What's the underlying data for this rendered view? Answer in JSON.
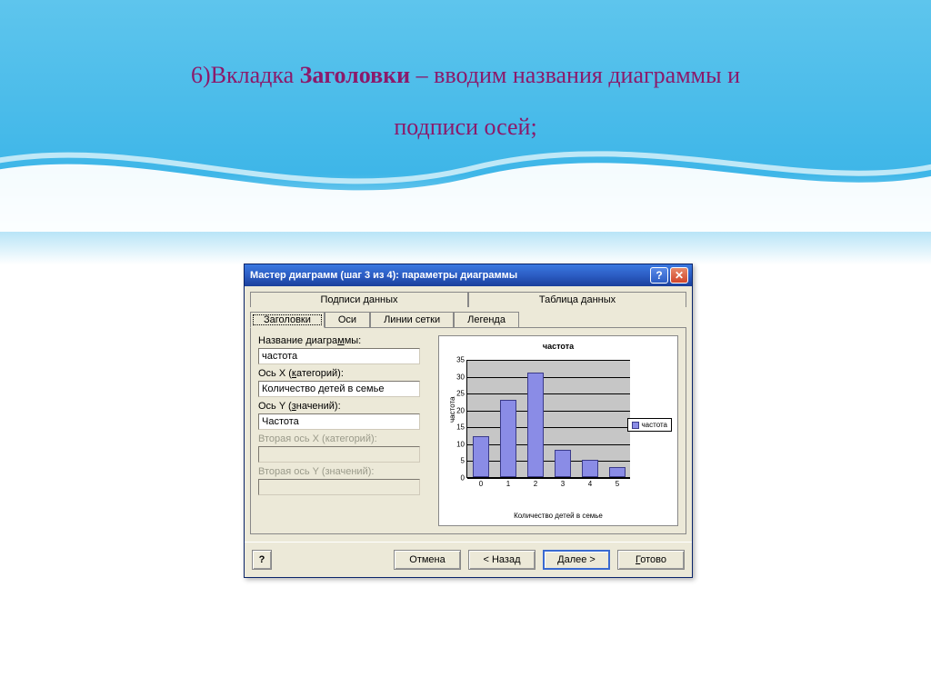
{
  "slide": {
    "title_prefix": "6)Вкладка ",
    "title_bold": "Заголовки",
    "title_suffix": " – вводим названия диаграммы и",
    "title_line2": "подписи осей;",
    "title_color": "#8b1a6b",
    "title_fontsize": 26
  },
  "dialog": {
    "title": "Мастер диаграмм (шаг 3 из 4): параметры диаграммы",
    "help_btn": "?",
    "close_btn": "✕",
    "tabs_top": [
      {
        "label": "Подписи данных"
      },
      {
        "label": "Таблица данных"
      }
    ],
    "tabs_bottom": [
      {
        "label": "Заголовки",
        "active": true
      },
      {
        "label": "Оси"
      },
      {
        "label": "Линии сетки"
      },
      {
        "label": "Легенда"
      }
    ],
    "fields": {
      "chart_title": {
        "label": "Название диаграммы:",
        "underline_char": "м",
        "value": "частота"
      },
      "x_axis": {
        "label": "Ось X (категорий):",
        "underline_char": "к",
        "value": "Количество детей в семье"
      },
      "y_axis": {
        "label": "Ось Y (значений):",
        "underline_char": "з",
        "value": "Частота"
      },
      "x2_axis": {
        "label": "Вторая ось X (категорий):",
        "disabled": true,
        "value": ""
      },
      "y2_axis": {
        "label": "Вторая ось Y (значений):",
        "disabled": true,
        "value": ""
      }
    },
    "buttons": {
      "help": "?",
      "cancel": "Отмена",
      "back": "< Назад",
      "next": "Далее >",
      "finish": "Готово"
    }
  },
  "chart": {
    "type": "bar",
    "title": "частота",
    "ylabel": "частота",
    "xlabel": "Количество детей в семье",
    "categories": [
      "0",
      "1",
      "2",
      "3",
      "4",
      "5"
    ],
    "values": [
      12,
      23,
      31,
      8,
      5,
      3
    ],
    "ylim": [
      0,
      35
    ],
    "ytick_step": 5,
    "bar_color": "#8a8ce6",
    "bar_border_color": "#3a3a8a",
    "plot_bg": "#c6c6c6",
    "grid_color": "#000000",
    "legend_label": "частота",
    "title_fontsize": 9,
    "axis_fontsize": 8
  },
  "colors": {
    "dialog_bg": "#ece9d8",
    "titlebar_gradient": [
      "#3a78e0",
      "#1a3f9b"
    ],
    "close_btn": "#d1462a",
    "sky_top": "#5ec5ed"
  }
}
